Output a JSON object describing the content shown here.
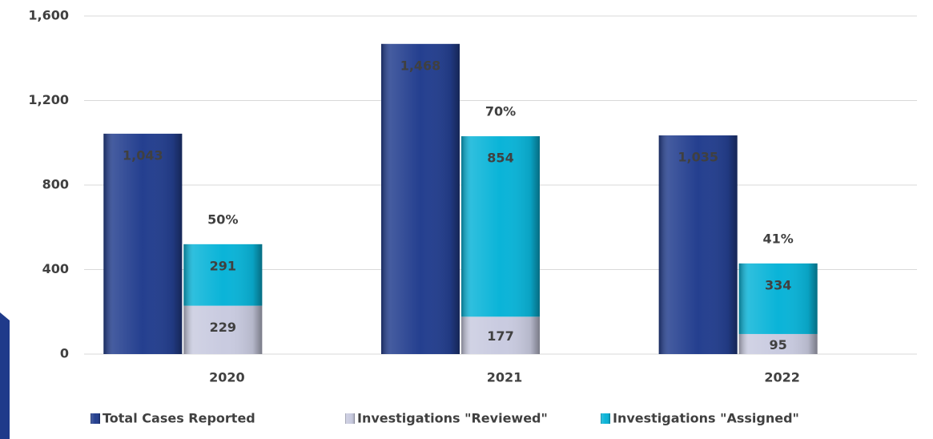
{
  "chart_data": {
    "type": "bar",
    "categories": [
      "2020",
      "2021",
      "2022"
    ],
    "series": [
      {
        "name": "Total Cases Reported",
        "color": "#243f8f",
        "stack": "total",
        "values": [
          1043,
          1468,
          1035
        ],
        "value_labels": [
          "1,043",
          "1,468",
          "1,035"
        ]
      },
      {
        "name": "Investigations \"Reviewed\"",
        "color": "#c9cbe0",
        "stack": "investigations",
        "values": [
          229,
          177,
          95
        ]
      },
      {
        "name": "Investigations \"Assigned\"",
        "color": "#0ab4d8",
        "stack": "investigations",
        "values": [
          291,
          854,
          334
        ]
      }
    ],
    "annotations": [
      "50%",
      "70%",
      "41%"
    ],
    "ylim": [
      0,
      1600
    ],
    "yticks": [
      0,
      400,
      800,
      {
        "value": 1200,
        "label": "1,200"
      },
      {
        "value": 1600,
        "label": "1,600"
      }
    ],
    "grid": true,
    "legend": "bottom"
  }
}
